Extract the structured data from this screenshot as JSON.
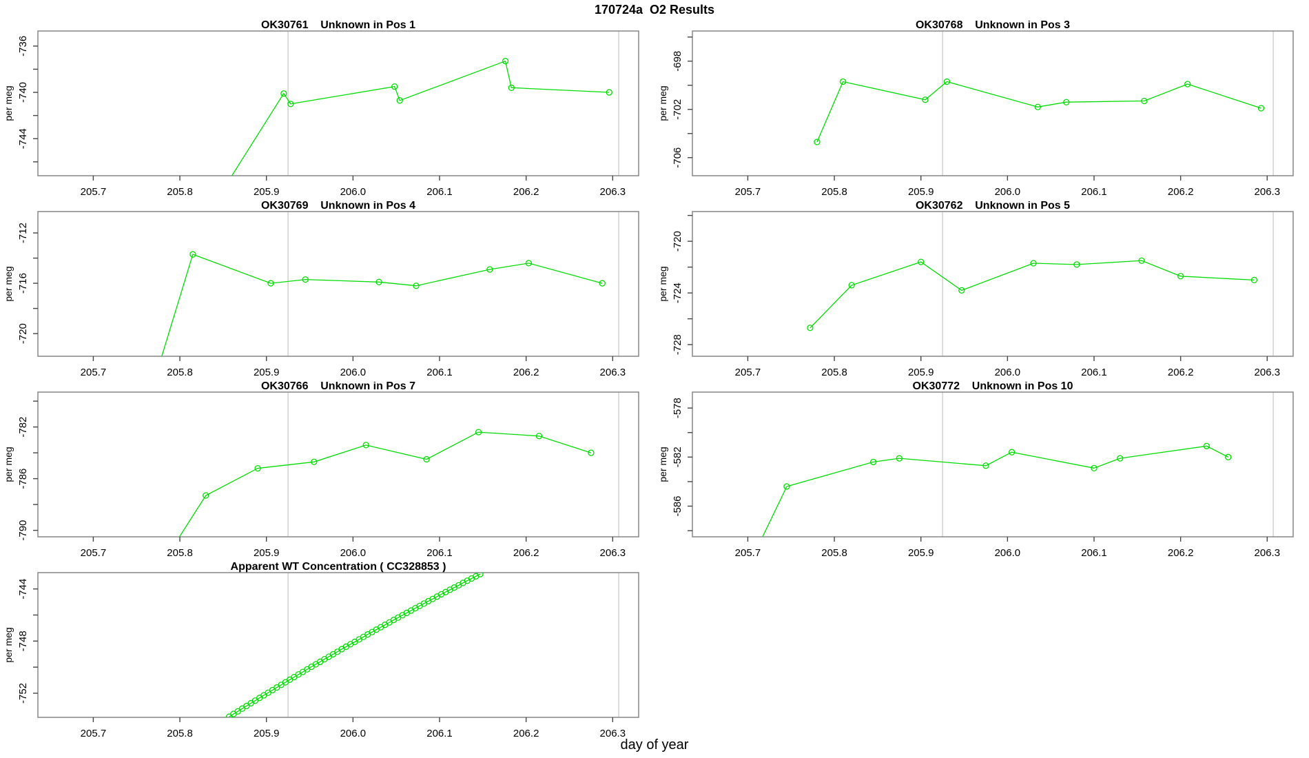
{
  "page_title": "170724a  O2 Results",
  "x_axis_label": "day of year",
  "colors": {
    "series": "#00dd00",
    "abline": "#d4d4d4",
    "box": "#858585",
    "tick": "#444444",
    "text": "#000000",
    "background": "#ffffff"
  },
  "axis": {
    "xlim": [
      205.636,
      206.33
    ],
    "xticks": [
      205.7,
      205.8,
      205.9,
      206.0,
      206.1,
      206.2,
      206.3
    ],
    "abline_x": [
      205.925,
      206.307
    ]
  },
  "chart_data": [
    {
      "type": "line",
      "marker": "open-circle",
      "id": "OK30761",
      "title": "OK30761    Unknown in Pos 1",
      "ylabel": "per meg",
      "ylim": [
        -747.2,
        -734.7
      ],
      "yticks": [
        -746,
        -744,
        -742,
        -740,
        -738,
        -736
      ],
      "ytick_labels": [
        -744,
        -740,
        -736
      ],
      "x": [
        205.855,
        205.92,
        205.928,
        206.048,
        206.054,
        206.176,
        206.183,
        206.296
      ],
      "y": [
        -747.8,
        -740.1,
        -741.0,
        -739.5,
        -740.7,
        -737.3,
        -739.6,
        -740.0
      ]
    },
    {
      "type": "line",
      "marker": "open-circle",
      "id": "OK30768",
      "title": "OK30768    Unknown in Pos 3",
      "ylabel": "per meg",
      "ylim": [
        -707.5,
        -695.5
      ],
      "yticks": [
        -706,
        -704,
        -702,
        -700,
        -698,
        -696
      ],
      "ytick_labels": [
        -706,
        -702,
        -698
      ],
      "x": [
        205.78,
        205.81,
        205.905,
        205.93,
        206.035,
        206.068,
        206.158,
        206.208,
        206.293
      ],
      "y": [
        -704.7,
        -699.7,
        -701.2,
        -699.7,
        -701.8,
        -701.4,
        -701.3,
        -699.9,
        -701.9
      ]
    },
    {
      "type": "line",
      "marker": "open-circle",
      "id": "OK30769",
      "title": "OK30769    Unknown in Pos 4",
      "ylabel": "per meg",
      "ylim": [
        -721.8,
        -710.3
      ],
      "yticks": [
        -720,
        -718,
        -716,
        -714,
        -712
      ],
      "ytick_labels": [
        -720,
        -716,
        -712
      ],
      "x": [
        205.776,
        205.815,
        205.905,
        205.945,
        206.03,
        206.073,
        206.158,
        206.203,
        206.288
      ],
      "y": [
        -722.5,
        -713.7,
        -716.0,
        -715.7,
        -715.9,
        -716.2,
        -714.9,
        -714.4,
        -716.0
      ]
    },
    {
      "type": "line",
      "marker": "open-circle",
      "id": "OK30762",
      "title": "OK30762    Unknown in Pos 5",
      "ylabel": "per meg",
      "ylim": [
        -728.9,
        -717.7
      ],
      "yticks": [
        -728,
        -726,
        -724,
        -722,
        -720,
        -718
      ],
      "ytick_labels": [
        -728,
        -724,
        -720
      ],
      "x": [
        205.772,
        205.82,
        205.9,
        205.947,
        206.03,
        206.08,
        206.155,
        206.2,
        206.285
      ],
      "y": [
        -726.7,
        -723.4,
        -721.6,
        -723.8,
        -721.7,
        -721.8,
        -721.5,
        -722.7,
        -723.0
      ]
    },
    {
      "type": "line",
      "marker": "open-circle",
      "id": "OK30766",
      "title": "OK30766    Unknown in Pos 7",
      "ylabel": "per meg",
      "ylim": [
        -790.5,
        -779.3
      ],
      "yticks": [
        -790,
        -788,
        -786,
        -784,
        -782,
        -780
      ],
      "ytick_labels": [
        -790,
        -786,
        -782
      ],
      "x": [
        205.79,
        205.83,
        205.89,
        205.955,
        206.015,
        206.085,
        206.145,
        206.215,
        206.275
      ],
      "y": [
        -791.5,
        -787.3,
        -785.2,
        -784.7,
        -783.4,
        -784.5,
        -782.4,
        -782.7,
        -784.0
      ]
    },
    {
      "type": "line",
      "marker": "open-circle",
      "id": "OK30772",
      "title": "OK30772    Unknown in Pos 10",
      "ylabel": "per meg",
      "ylim": [
        -588.5,
        -576.7
      ],
      "yticks": [
        -588,
        -586,
        -584,
        -582,
        -580,
        -578
      ],
      "ytick_labels": [
        -586,
        -582,
        -578
      ],
      "x": [
        205.715,
        205.745,
        205.845,
        205.875,
        205.975,
        206.005,
        206.1,
        206.13,
        206.23,
        206.255
      ],
      "y": [
        -588.8,
        -584.4,
        -582.4,
        -582.1,
        -582.7,
        -581.6,
        -582.9,
        -582.1,
        -581.1,
        -582.0
      ]
    },
    {
      "type": "line",
      "marker": "open-circle",
      "id": "CC328853",
      "title": "Apparent WT Concentration ( CC328853 )",
      "ylabel": "per meg",
      "ylim": [
        -753.85,
        -742.75
      ],
      "yticks": [
        -752,
        -750,
        -748,
        -746,
        -744
      ],
      "ytick_labels": [
        -752,
        -748,
        -744
      ],
      "x": [
        205.857,
        205.862,
        205.867,
        205.872,
        205.877,
        205.882,
        205.887,
        205.892,
        205.897,
        205.902,
        205.907,
        205.912,
        205.917,
        205.922,
        205.927,
        205.932,
        205.937,
        205.942,
        205.947,
        205.952,
        205.957,
        205.962,
        205.967,
        205.972,
        205.977,
        205.982,
        205.987,
        205.992,
        205.997,
        206.002,
        206.007,
        206.012,
        206.017,
        206.022,
        206.027,
        206.032,
        206.037,
        206.042,
        206.047,
        206.052,
        206.057,
        206.062,
        206.067,
        206.072,
        206.077,
        206.082,
        206.087,
        206.092,
        206.097,
        206.102,
        206.107,
        206.112,
        206.117,
        206.122,
        206.127,
        206.132,
        206.137,
        206.142,
        206.147
      ],
      "y": [
        -753.8,
        -753.59,
        -753.39,
        -753.18,
        -752.98,
        -752.77,
        -752.57,
        -752.36,
        -752.16,
        -751.96,
        -751.76,
        -751.56,
        -751.36,
        -751.16,
        -750.96,
        -750.76,
        -750.56,
        -750.37,
        -750.17,
        -749.97,
        -749.78,
        -749.59,
        -749.39,
        -749.2,
        -749.01,
        -748.82,
        -748.62,
        -748.43,
        -748.24,
        -748.06,
        -747.87,
        -747.68,
        -747.49,
        -747.31,
        -747.12,
        -746.94,
        -746.75,
        -746.57,
        -746.38,
        -746.2,
        -746.02,
        -745.84,
        -745.66,
        -745.48,
        -745.3,
        -745.12,
        -744.94,
        -744.77,
        -744.59,
        -744.41,
        -744.24,
        -744.06,
        -743.89,
        -743.72,
        -743.54,
        -743.37,
        -743.2,
        -743.03,
        -742.86
      ]
    }
  ]
}
